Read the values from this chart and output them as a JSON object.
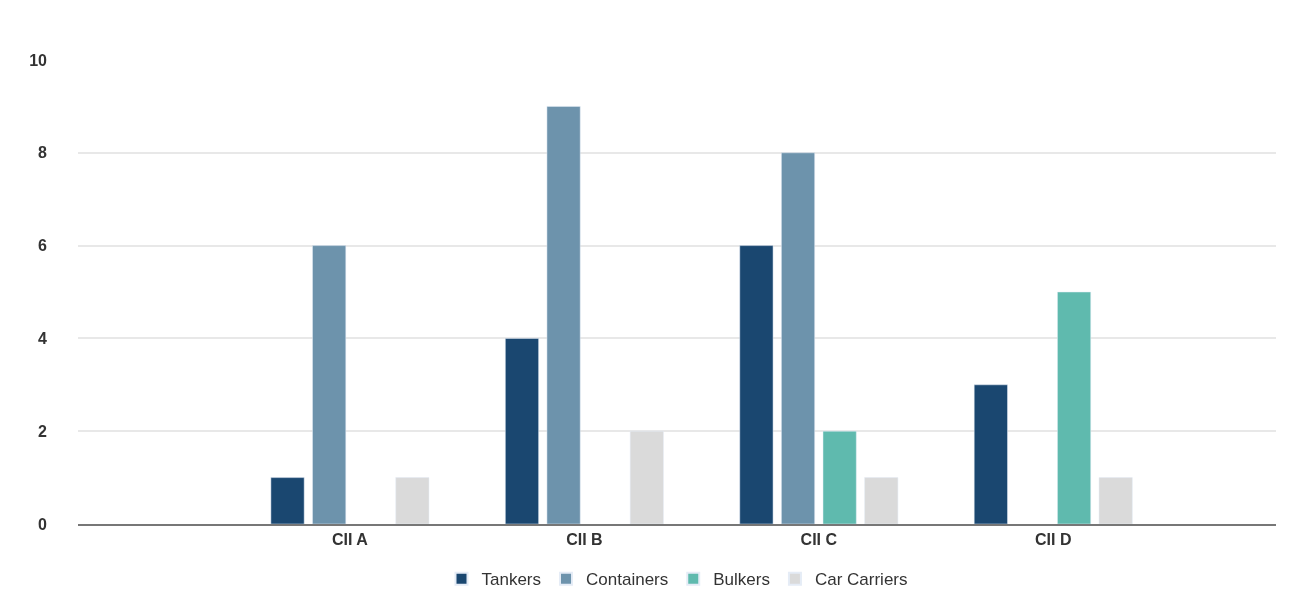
{
  "chart_data": {
    "type": "bar",
    "categories": [
      "CII A",
      "CII B",
      "CII C",
      "CII D"
    ],
    "series": [
      {
        "name": "Tankers",
        "color": "#1a4770",
        "values": [
          1,
          4,
          6,
          3
        ]
      },
      {
        "name": "Containers",
        "color": "#6d93ac",
        "values": [
          6,
          9,
          8,
          null
        ]
      },
      {
        "name": "Bulkers",
        "color": "#5fbaae",
        "values": [
          null,
          null,
          2,
          5
        ]
      },
      {
        "name": "Car Carriers",
        "color": "#dadada",
        "values": [
          1,
          2,
          1,
          1
        ]
      }
    ],
    "ylim": [
      0,
      10
    ],
    "yticks": [
      0,
      2,
      4,
      6,
      8,
      10
    ],
    "grid": "y",
    "legend": "bottom"
  }
}
